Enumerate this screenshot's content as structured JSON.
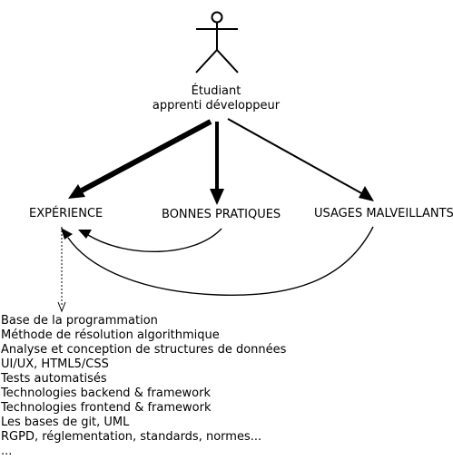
{
  "actor": {
    "line1": "Étudiant",
    "line2": "apprenti développeur"
  },
  "nodes": {
    "experience": "EXPÉRIENCE",
    "bonnes_pratiques": "BONNES PRATIQUES",
    "usages_malveillants": "USAGES MALVEILLANTS"
  },
  "topics": [
    "Base de la programmation",
    "Méthode de résolution algorithmique",
    "Analyse et conception de structures de données",
    "UI/UX, HTML5/CSS",
    "Tests automatisés",
    "Technologies backend & framework",
    "Technologies frontend & framework",
    "Les bases de git, UML",
    "RGPD, réglementation, standards, normes...",
    "..."
  ]
}
